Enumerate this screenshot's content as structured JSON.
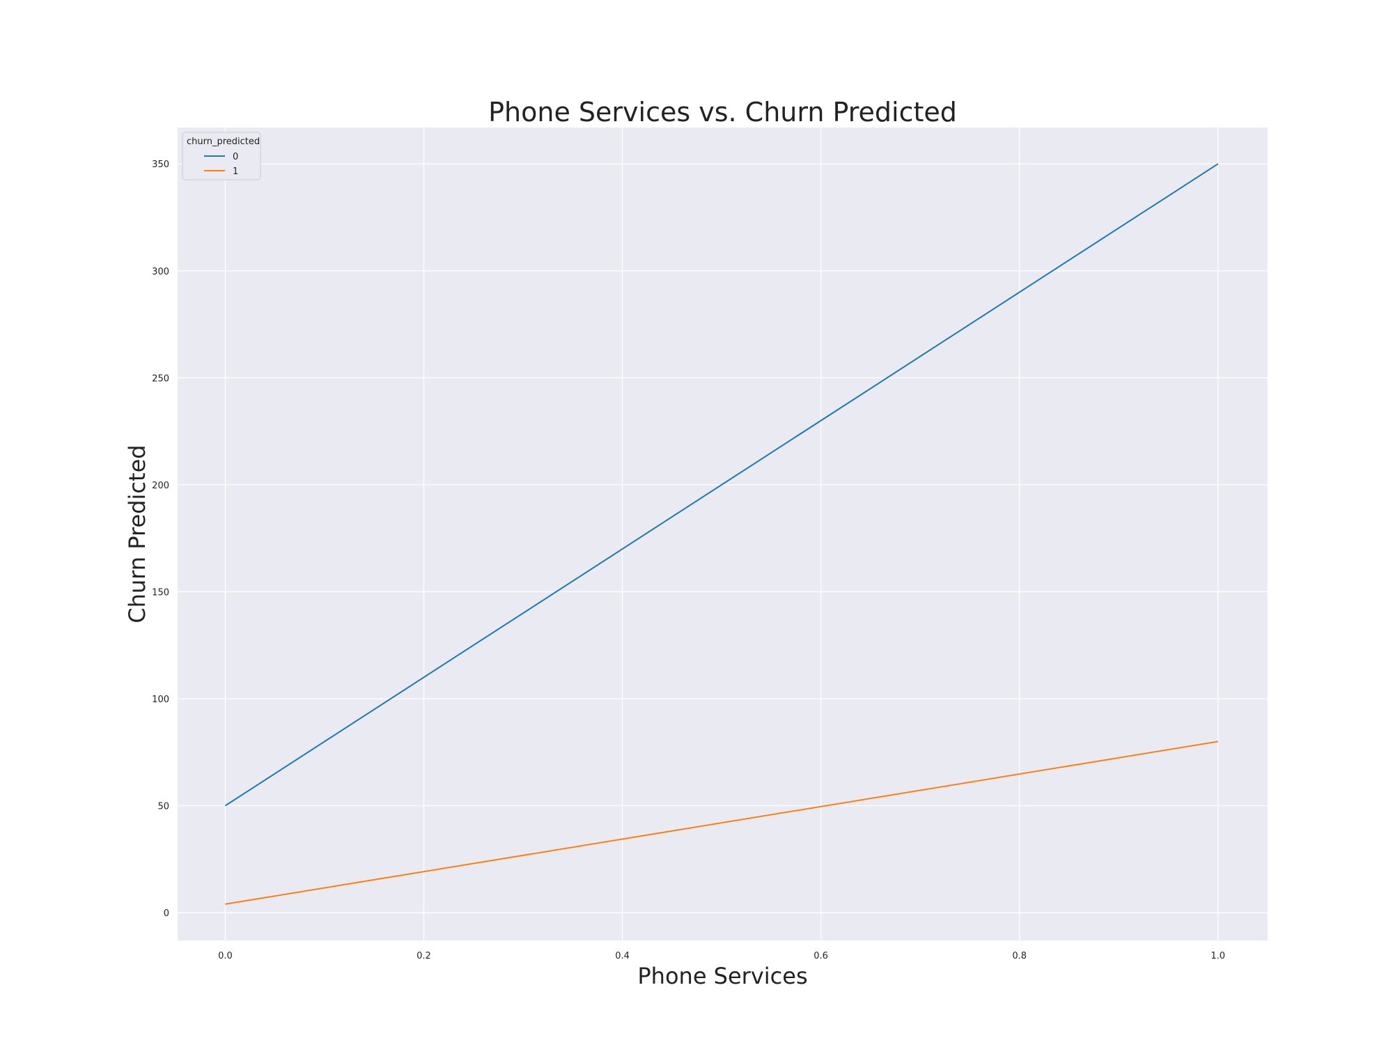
{
  "chart_data": {
    "type": "line",
    "title": "Phone Services vs. Churn Predicted",
    "xlabel": "Phone Services",
    "ylabel": "Churn Predicted",
    "xlim": [
      -0.048,
      1.05
    ],
    "ylim": [
      -13,
      367
    ],
    "x_ticks": [
      "0.0",
      "0.2",
      "0.4",
      "0.6",
      "0.8",
      "1.0"
    ],
    "x_tick_values": [
      0.0,
      0.2,
      0.4,
      0.6,
      0.8,
      1.0
    ],
    "y_ticks": [
      "0",
      "50",
      "100",
      "150",
      "200",
      "250",
      "300",
      "350"
    ],
    "y_tick_values": [
      0,
      50,
      100,
      150,
      200,
      250,
      300,
      350
    ],
    "grid": true,
    "legend": {
      "title": "churn_predicted",
      "placement": "top-left"
    },
    "series": [
      {
        "name": "0",
        "color": "#1f77b4",
        "x": [
          0.0,
          1.0
        ],
        "y": [
          50,
          350
        ]
      },
      {
        "name": "1",
        "color": "#ff7f0e",
        "x": [
          0.0,
          1.0
        ],
        "y": [
          4,
          80
        ]
      }
    ]
  },
  "colors": {
    "plot_background": "#eaeaf2",
    "grid": "#ffffff"
  }
}
